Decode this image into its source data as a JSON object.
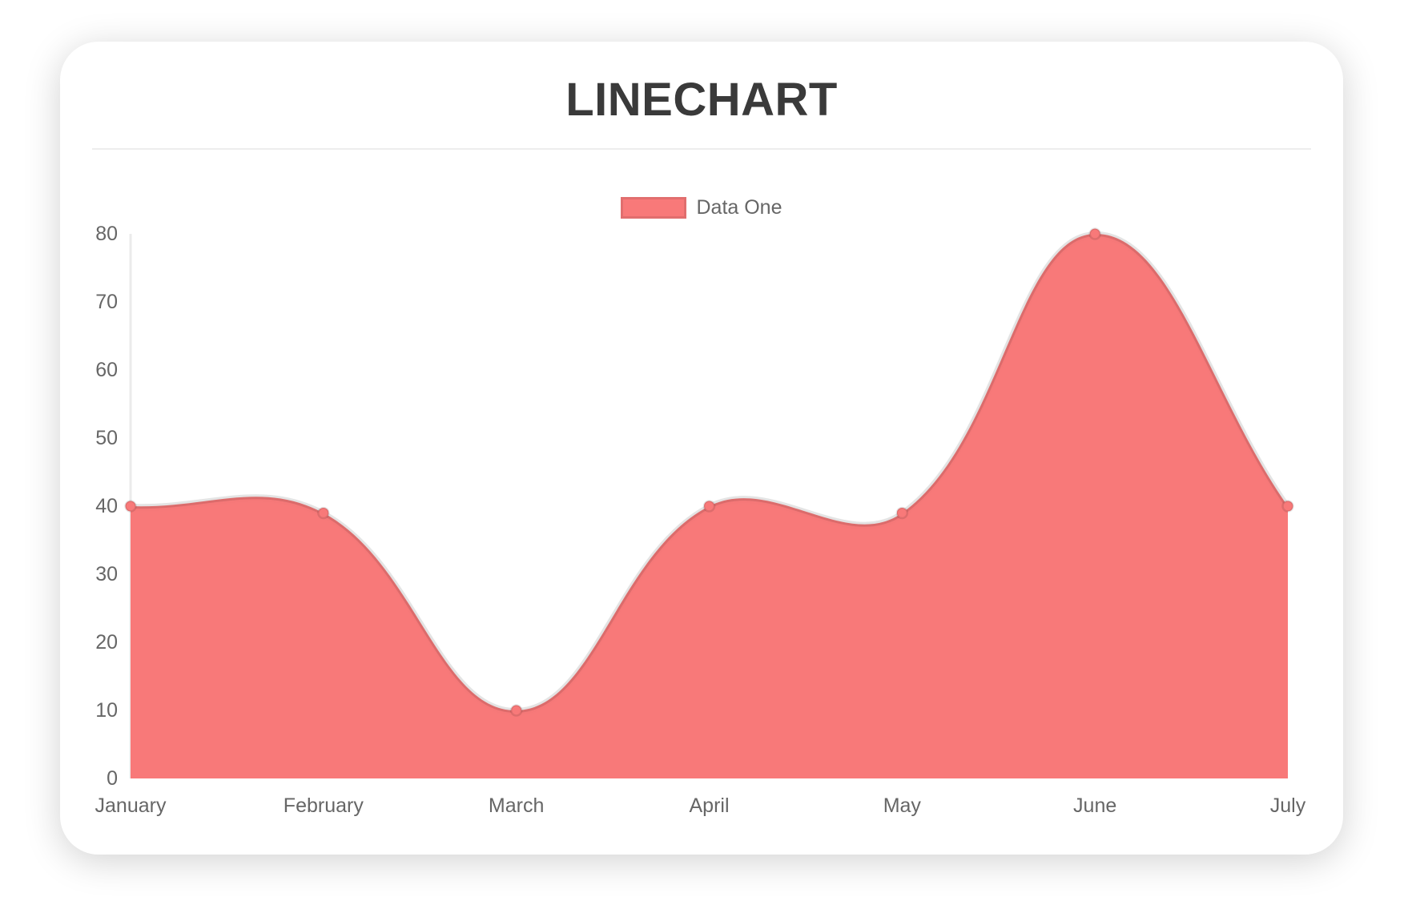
{
  "header": {
    "title": "LINECHART"
  },
  "legend": {
    "position": "top",
    "items": [
      {
        "label": "Data One",
        "color": "#f87979"
      }
    ]
  },
  "chart_data": {
    "type": "area",
    "title": "LINECHART",
    "categories": [
      "January",
      "February",
      "March",
      "April",
      "May",
      "June",
      "July"
    ],
    "series": [
      {
        "name": "Data One",
        "values": [
          40,
          39,
          10,
          40,
          39,
          80,
          40
        ]
      }
    ],
    "xlabel": "",
    "ylabel": "",
    "ylim": [
      0,
      80
    ],
    "y_ticks": [
      0,
      10,
      20,
      30,
      40,
      50,
      60,
      70,
      80
    ],
    "grid": false,
    "legend_position": "top",
    "curve_tension": 0.4,
    "colors": {
      "fill": "#f87979",
      "line": "rgba(0,0,0,0.10)",
      "point_fill": "#f87979",
      "point_border": "rgba(0,0,0,0.10)",
      "axis_line": "rgba(0,0,0,0.08)",
      "tick_text": "#666666",
      "title_text": "#3a3a3a"
    }
  }
}
